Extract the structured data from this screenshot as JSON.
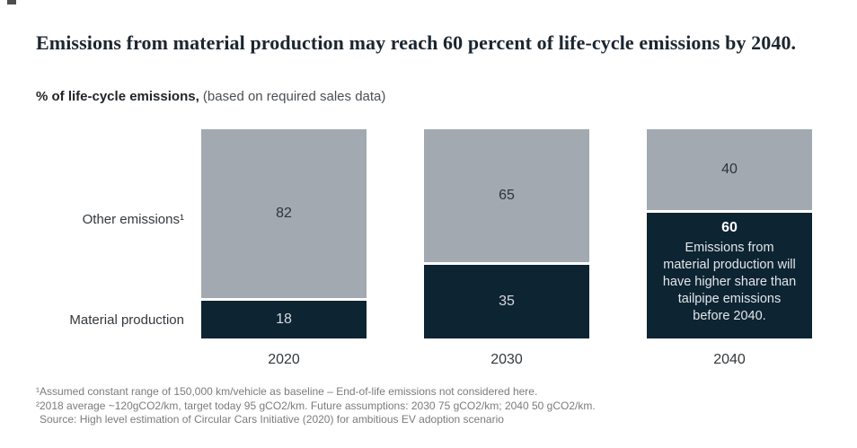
{
  "header": {
    "title": "Emissions from material production may reach 60 percent of life-cycle emissions by 2040.",
    "subtitle_bold": "% of life-cycle emissions,",
    "subtitle_rest": "(based on required sales data)"
  },
  "row_labels": {
    "other": "Other emissions¹",
    "material": "Material production"
  },
  "chart_data": {
    "type": "bar",
    "stacked": true,
    "title": "Emissions from material production may reach 60 percent of life-cycle emissions by 2040.",
    "ylabel": "% of life-cycle emissions",
    "categories": [
      "2020",
      "2030",
      "2040"
    ],
    "series": [
      {
        "name": "Other emissions",
        "color": "#a2a9b0",
        "values": [
          82,
          65,
          40
        ]
      },
      {
        "name": "Material production",
        "color": "#0d2433",
        "values": [
          18,
          35,
          60
        ]
      }
    ],
    "ylim": [
      0,
      100
    ],
    "grid": false,
    "legend_position": "row-labels-left",
    "annotation": {
      "category": "2040",
      "series": "Material production",
      "value_label": "60",
      "text": "Emissions from material production will have higher share than tailpipe emissions before 2040.",
      "text_lines": [
        "Emissions from",
        "material production will",
        "have higher share than",
        "tailpipe emissions",
        "before 2040."
      ]
    }
  },
  "footnotes": {
    "line1": "¹Assumed constant range of 150,000 km/vehicle as baseline – End-of-life emissions not considered here.",
    "line2": "²2018 average ~120gCO2/km, target today 95 gCO2/km. Future assumptions: 2030 75 gCO2/km; 2040 50 gCO2/km.",
    "source": "Source: High level estimation of Circular Cars Initiative (2020) for ambitious EV adoption scenario"
  },
  "colors": {
    "bar_other": "#a2a9b0",
    "bar_material": "#0d2433",
    "title_text": "#1b2630",
    "footnote_text": "#7b7b7b"
  }
}
